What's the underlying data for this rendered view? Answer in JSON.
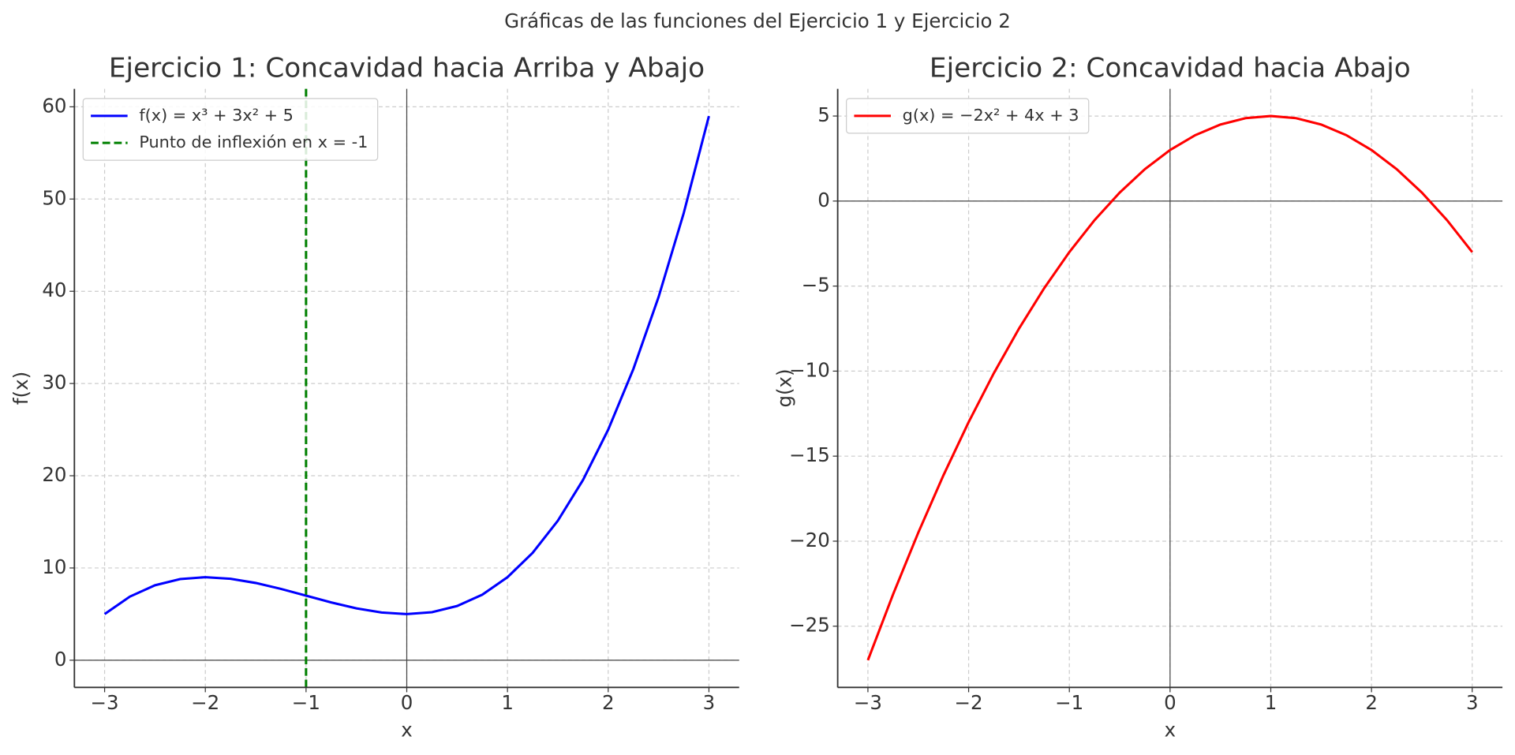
{
  "title": "Gráficas de las funciones del Ejercicio 1 y Ejercicio 2",
  "chart_data": [
    {
      "type": "line",
      "title": "Ejercicio 1: Concavidad hacia Arriba y Abajo",
      "x_label": "x",
      "y_label": "f(x)",
      "x": [
        -3,
        -2.75,
        -2.5,
        -2.25,
        -2,
        -1.75,
        -1.5,
        -1.25,
        -1,
        -0.75,
        -0.5,
        -0.25,
        0,
        0.25,
        0.5,
        0.75,
        1,
        1.25,
        1.5,
        1.75,
        2,
        2.25,
        2.5,
        2.75,
        3
      ],
      "series": [
        {
          "name": "f(x) = x³ + 3x² + 5",
          "color": "#0000ff",
          "values": [
            5,
            6.891,
            8.125,
            8.797,
            9,
            8.828,
            8.375,
            7.734,
            7,
            6.266,
            5.625,
            5.172,
            5,
            5.203,
            5.875,
            7.109,
            9,
            11.641,
            15.125,
            19.547,
            25,
            31.578,
            39.375,
            48.484,
            59
          ]
        }
      ],
      "vline": {
        "name": "Punto de inflexión en x = -1",
        "x": -1,
        "color": "#008000"
      },
      "ref_lines": {
        "x": 0,
        "y": 0
      },
      "xlim": [
        -3.3,
        3.3
      ],
      "ylim": [
        -2.95,
        61.95
      ],
      "xticks": [
        {
          "value": -3,
          "label": "−3"
        },
        {
          "value": -2,
          "label": "−2"
        },
        {
          "value": -1,
          "label": "−1"
        },
        0,
        1,
        2,
        3
      ],
      "yticks": [
        0,
        10,
        20,
        30,
        40,
        50,
        60
      ],
      "grid": true,
      "legend": "upper left"
    },
    {
      "type": "line",
      "title": "Ejercicio 2: Concavidad hacia Abajo",
      "x_label": "x",
      "y_label": "g(x)",
      "x": [
        -3,
        -2.75,
        -2.5,
        -2.25,
        -2,
        -1.75,
        -1.5,
        -1.25,
        -1,
        -0.75,
        -0.5,
        -0.25,
        0,
        0.25,
        0.5,
        0.75,
        1,
        1.25,
        1.5,
        1.75,
        2,
        2.25,
        2.5,
        2.75,
        3
      ],
      "series": [
        {
          "name": "g(x) = −2x² + 4x + 3",
          "color": "#ff0000",
          "values": [
            -27,
            -23.125,
            -19.5,
            -16.125,
            -13,
            -10.125,
            -7.5,
            -5.125,
            -3,
            -1.125,
            0.5,
            1.875,
            3,
            3.875,
            4.5,
            4.875,
            5,
            4.875,
            4.5,
            3.875,
            3,
            1.875,
            0.5,
            -1.125,
            -3
          ]
        }
      ],
      "ref_lines": {
        "x": 0,
        "y": 0
      },
      "xlim": [
        -3.3,
        3.3
      ],
      "ylim": [
        -28.6,
        6.6
      ],
      "xticks": [
        {
          "value": -3,
          "label": "−3"
        },
        {
          "value": -2,
          "label": "−2"
        },
        {
          "value": -1,
          "label": "−1"
        },
        0,
        1,
        2,
        3
      ],
      "yticks": [
        {
          "value": -25,
          "label": "−25"
        },
        {
          "value": -20,
          "label": "−20"
        },
        {
          "value": -15,
          "label": "−15"
        },
        {
          "value": -10,
          "label": "−10"
        },
        {
          "value": -5,
          "label": "−5"
        },
        0,
        5
      ],
      "grid": true,
      "legend": "upper left"
    }
  ]
}
